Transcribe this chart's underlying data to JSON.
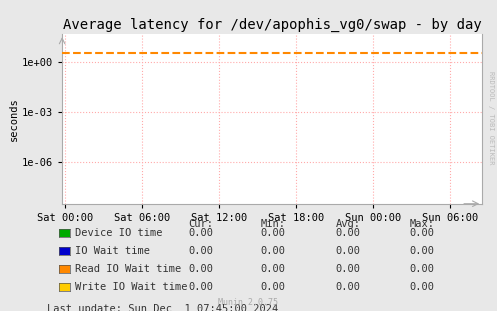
{
  "title": "Average latency for /dev/apophis_vg0/swap - by day",
  "ylabel": "seconds",
  "background_color": "#e8e8e8",
  "plot_bg_color": "#ffffff",
  "grid_color_major": "#ffaaaa",
  "grid_color_minor": "#ffdddd",
  "x_ticks_labels": [
    "Sat 00:00",
    "Sat 06:00",
    "Sat 12:00",
    "Sat 18:00",
    "Sun 00:00",
    "Sun 06:00"
  ],
  "x_ticks_positions": [
    0,
    6,
    12,
    18,
    24,
    30
  ],
  "x_min": -0.2,
  "x_max": 32.5,
  "y_min": 3e-09,
  "y_max": 50.0,
  "dashed_line_y": 3.8,
  "dashed_line_color": "#ff8800",
  "legend_items": [
    {
      "label": "Device IO time",
      "color": "#00aa00"
    },
    {
      "label": "IO Wait time",
      "color": "#0000cc"
    },
    {
      "label": "Read IO Wait time",
      "color": "#ff8800"
    },
    {
      "label": "Write IO Wait time",
      "color": "#ffcc00"
    }
  ],
  "legend_stats": {
    "headers": [
      "Cur:",
      "Min:",
      "Avg:",
      "Max:"
    ],
    "rows": [
      [
        "0.00",
        "0.00",
        "0.00",
        "0.00"
      ],
      [
        "0.00",
        "0.00",
        "0.00",
        "0.00"
      ],
      [
        "0.00",
        "0.00",
        "0.00",
        "0.00"
      ],
      [
        "0.00",
        "0.00",
        "0.00",
        "0.00"
      ]
    ]
  },
  "footer": "Last update: Sun Dec  1 07:45:00 2024",
  "munin_version": "Munin 2.0.75",
  "right_label": "RRDTOOL / TOBI OETIKER",
  "title_fontsize": 10,
  "axis_fontsize": 7.5,
  "legend_fontsize": 7.5
}
